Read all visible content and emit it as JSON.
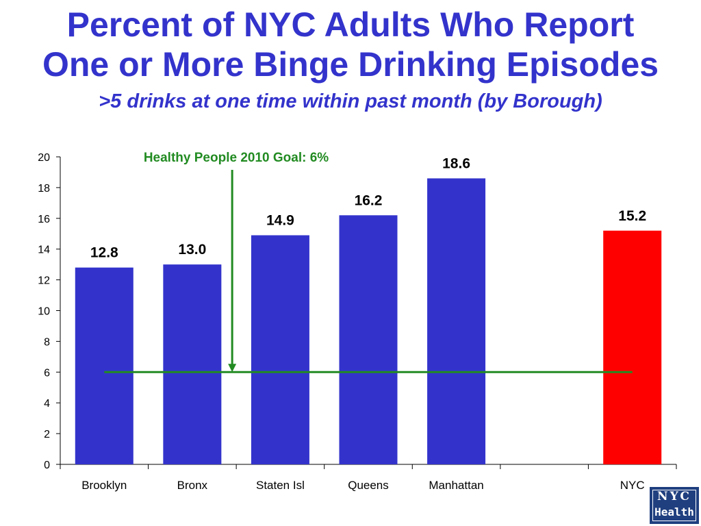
{
  "header": {
    "title_line1": "Percent of NYC Adults Who Report",
    "title_line2": "One or More Binge Drinking Episodes",
    "subtitle": ">5 drinks at one time within past month (by Borough)"
  },
  "chart_data": {
    "type": "bar",
    "categories": [
      "Brooklyn",
      "Bronx",
      "Staten Isl",
      "Queens",
      "Manhattan",
      "",
      "NYC"
    ],
    "values": [
      12.8,
      13.0,
      14.9,
      16.2,
      18.6,
      null,
      15.2
    ],
    "data_labels": [
      "12.8",
      "13.0",
      "14.9",
      "16.2",
      "18.6",
      "",
      "15.2"
    ],
    "bar_colors": [
      "#3333cc",
      "#3333cc",
      "#3333cc",
      "#3333cc",
      "#3333cc",
      "#3333cc",
      "#ff0000"
    ],
    "ylim": [
      0,
      20
    ],
    "yticks": [
      0,
      2,
      4,
      6,
      8,
      10,
      12,
      14,
      16,
      18,
      20
    ],
    "grid": false,
    "goal": {
      "value": 6,
      "label": "Healthy People 2010 Goal: 6%",
      "color": "#228b22"
    }
  },
  "logo": {
    "line1": "NYC",
    "line2": "Health",
    "color": "#1f3f7f"
  }
}
